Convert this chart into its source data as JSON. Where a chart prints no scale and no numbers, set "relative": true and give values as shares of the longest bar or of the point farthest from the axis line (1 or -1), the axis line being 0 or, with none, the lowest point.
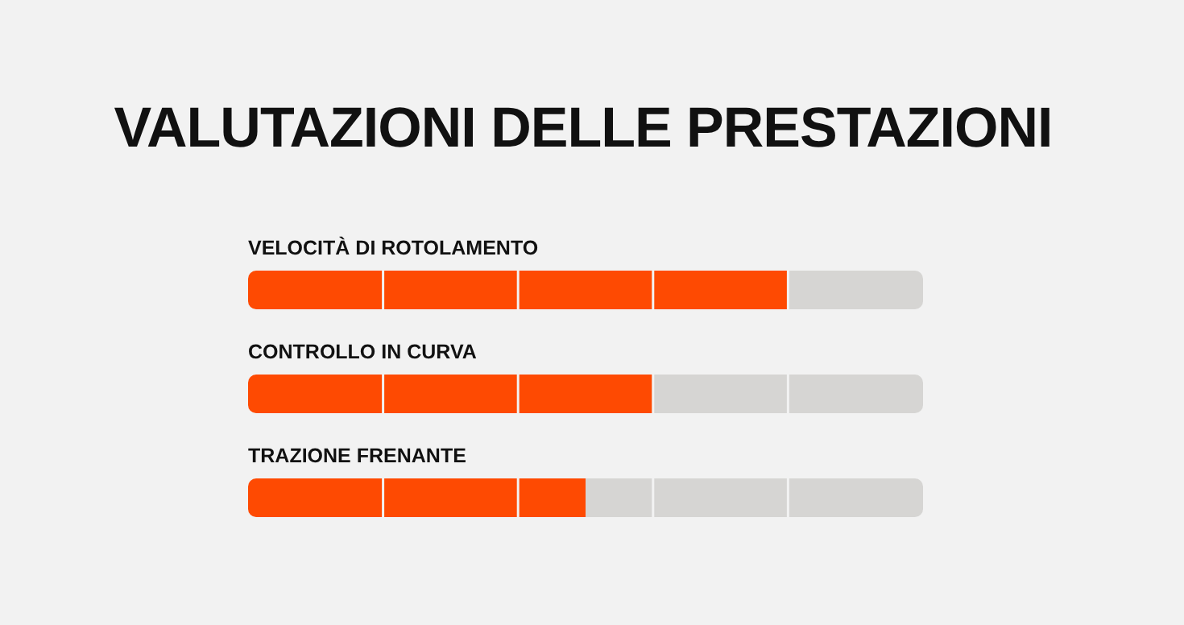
{
  "chart_data": {
    "type": "bar",
    "title": "VALUTAZIONI DELLE PRESTAZIONI",
    "orientation": "horizontal",
    "stacked": true,
    "relative": true,
    "categories": [
      "VELOCITÀ DI ROTOLAMENTO",
      "CONTROLLO IN CURVA",
      "TRAZIONE FRENANTE"
    ],
    "series": [
      {
        "color": "#fe4a02",
        "values": [
          0.8,
          0.6,
          0.5
        ]
      },
      {
        "color": "#d6d5d3",
        "values": [
          0.2,
          0.4,
          0.5
        ]
      }
    ]
  }
}
